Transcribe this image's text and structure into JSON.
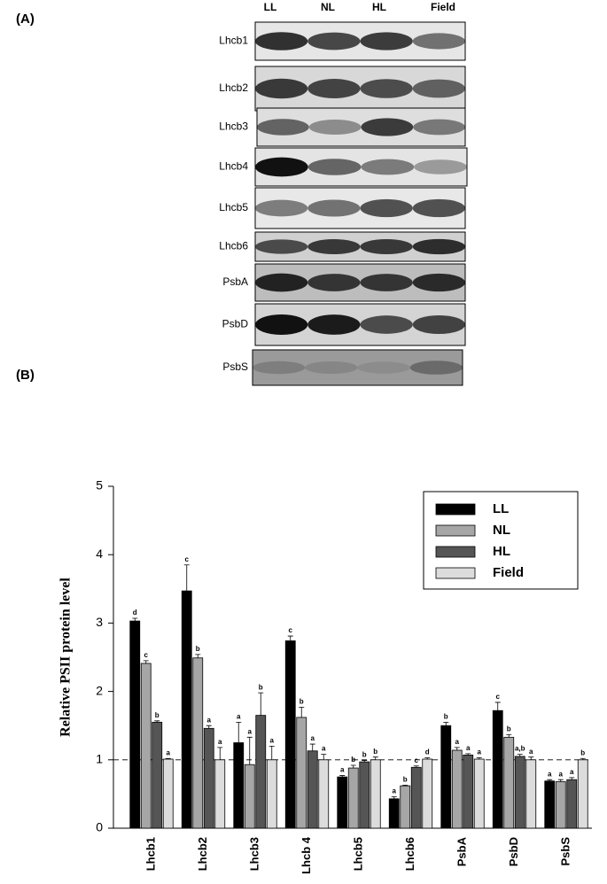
{
  "panel_a": {
    "label": "(A)",
    "lanes": [
      "LL",
      "NL",
      "HL",
      "Field"
    ],
    "rows": [
      "Lhcb1",
      "Lhcb2",
      "Lhcb3",
      "Lhcb4",
      "Lhcb5",
      "Lhcb6",
      "PsbA",
      "PsbD",
      "PsbS"
    ]
  },
  "panel_b": {
    "label": "(B)"
  },
  "chart_data": {
    "type": "bar",
    "y_label": "Relative PSII protein level",
    "categories": [
      "Lhcb1",
      "Lhcb2",
      "Lhcb3",
      "Lhcb 4",
      "Lhcb5",
      "Lhcb6",
      "PsbA",
      "PsbD",
      "PsbS"
    ],
    "series": [
      {
        "name": "LL",
        "color": "#000000",
        "values": [
          3.03,
          3.47,
          1.25,
          2.74,
          0.75,
          0.43,
          1.5,
          1.72,
          0.69
        ],
        "errors": [
          0.04,
          0.38,
          0.3,
          0.07,
          0.02,
          0.03,
          0.05,
          0.12,
          0.02
        ],
        "letters": [
          "d",
          "c",
          "a",
          "c",
          "a",
          "a",
          "b",
          "c",
          "a"
        ]
      },
      {
        "name": "NL",
        "color": "#a6a6a6",
        "values": [
          2.41,
          2.49,
          0.93,
          1.62,
          0.88,
          0.62,
          1.14,
          1.33,
          0.68
        ],
        "errors": [
          0.04,
          0.05,
          0.4,
          0.15,
          0.04,
          0.01,
          0.04,
          0.04,
          0.03
        ],
        "letters": [
          "c",
          "b",
          "a",
          "b",
          "b",
          "b",
          "a",
          "b",
          "a"
        ]
      },
      {
        "name": "HL",
        "color": "#555555",
        "values": [
          1.55,
          1.46,
          1.65,
          1.13,
          0.97,
          0.89,
          1.07,
          1.05,
          0.71
        ],
        "errors": [
          0.02,
          0.04,
          0.33,
          0.1,
          0.02,
          0.02,
          0.02,
          0.03,
          0.03
        ],
        "letters": [
          "b",
          "a",
          "b",
          "a",
          "b",
          "c",
          "a",
          "a,b",
          "a"
        ]
      },
      {
        "name": "Field",
        "color": "#dcdcdc",
        "values": [
          1.01,
          1.0,
          1.0,
          1.0,
          1.0,
          1.01,
          1.01,
          1.0,
          1.0
        ],
        "errors": [
          0.01,
          0.18,
          0.2,
          0.08,
          0.04,
          0.02,
          0.02,
          0.04,
          0.02
        ],
        "letters": [
          "a",
          "a",
          "a",
          "a",
          "b",
          "d",
          "a",
          "a",
          "b"
        ]
      }
    ],
    "ylim": [
      0,
      5
    ],
    "yticks": [
      0,
      1,
      2,
      3,
      4,
      5
    ],
    "reference_line": 1,
    "legend": "upper right"
  }
}
